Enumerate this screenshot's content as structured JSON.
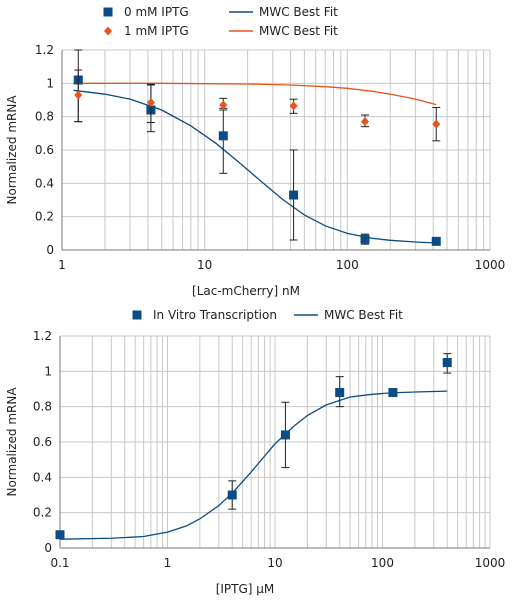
{
  "colors": {
    "blue": "#0b4b86",
    "orange": "#e8541c",
    "grid": "#c8c8c8",
    "axis": "#7a7a7a"
  },
  "chart_data": [
    {
      "type": "scatter",
      "xscale": "log",
      "xlim": [
        1,
        1000
      ],
      "ylim": [
        0,
        1.2
      ],
      "yticks": [
        "0",
        "0.2",
        "0.4",
        "0.6",
        "0.8",
        "1",
        "1.2"
      ],
      "xticks": [
        "1",
        "10",
        "100",
        "1000"
      ],
      "xlabel": "[Lac-mCherry] nM",
      "ylabel": "Normalized mRNA",
      "legend_position": "top",
      "legend": [
        {
          "name": "0 mM IPTG",
          "marker": "square",
          "color": "#0b4b86"
        },
        {
          "name": "MWC Best Fit",
          "marker": "line",
          "color": "#0b4b86"
        },
        {
          "name": "1 mM IPTG",
          "marker": "diamond",
          "color": "#e8541c"
        },
        {
          "name": "MWC Best Fit",
          "marker": "line",
          "color": "#e8541c"
        }
      ],
      "series": [
        {
          "name": "0 mM IPTG",
          "marker": "square",
          "color": "#0b4b86",
          "points": [
            {
              "x": 1.3,
              "y": 1.02,
              "err_lo": 0.25,
              "err_hi": 0.18
            },
            {
              "x": 4.2,
              "y": 0.84,
              "err_lo": 0.13,
              "err_hi": 0.15
            },
            {
              "x": 13.5,
              "y": 0.685,
              "err_lo": 0.225,
              "err_hi": 0.155
            },
            {
              "x": 42,
              "y": 0.33,
              "err_lo": 0.27,
              "err_hi": 0.27
            },
            {
              "x": 133,
              "y": 0.065,
              "err_lo": 0.03,
              "err_hi": 0.03
            },
            {
              "x": 420,
              "y": 0.052,
              "err_lo": 0.01,
              "err_hi": 0.01
            }
          ]
        },
        {
          "name": "1 mM IPTG",
          "marker": "diamond",
          "color": "#e8541c",
          "points": [
            {
              "x": 1.3,
              "y": 0.93,
              "err_lo": 0.16,
              "err_hi": 0.15
            },
            {
              "x": 4.2,
              "y": 0.885,
              "err_lo": 0.12,
              "err_hi": 0.11
            },
            {
              "x": 13.5,
              "y": 0.87,
              "err_lo": 0.02,
              "err_hi": 0.04
            },
            {
              "x": 42,
              "y": 0.865,
              "err_lo": 0.045,
              "err_hi": 0.04
            },
            {
              "x": 133,
              "y": 0.77,
              "err_lo": 0.03,
              "err_hi": 0.04
            },
            {
              "x": 420,
              "y": 0.755,
              "err_lo": 0.1,
              "err_hi": 0.1
            }
          ]
        }
      ],
      "fits": [
        {
          "name": "MWC Best Fit",
          "color": "#0b4b86",
          "x": [
            1.2,
            2,
            3,
            5,
            8,
            12,
            18,
            25,
            35,
            50,
            70,
            100,
            150,
            200,
            300,
            420
          ],
          "y": [
            0.958,
            0.935,
            0.905,
            0.84,
            0.745,
            0.64,
            0.515,
            0.41,
            0.305,
            0.21,
            0.145,
            0.1,
            0.07,
            0.058,
            0.048,
            0.042
          ]
        },
        {
          "name": "MWC Best Fit",
          "color": "#e8541c",
          "x": [
            1.2,
            5,
            10,
            20,
            40,
            70,
            100,
            150,
            200,
            300,
            420
          ],
          "y": [
            1.0,
            1.0,
            0.998,
            0.996,
            0.99,
            0.98,
            0.97,
            0.952,
            0.935,
            0.905,
            0.872
          ]
        }
      ]
    },
    {
      "type": "scatter",
      "xscale": "log",
      "xlim": [
        0.1,
        1000
      ],
      "ylim": [
        0,
        1.2
      ],
      "yticks": [
        "0",
        "0.2",
        "0.4",
        "0.6",
        "0.8",
        "1",
        "1.2"
      ],
      "xticks": [
        "0.1",
        "1",
        "10",
        "100",
        "1000"
      ],
      "xlabel": "[IPTG] μM",
      "ylabel": "Normalized mRNA",
      "legend_position": "top",
      "legend": [
        {
          "name": "In Vitro Transcription",
          "marker": "square",
          "color": "#0b4b86"
        },
        {
          "name": "MWC Best Fit",
          "marker": "line",
          "color": "#0b4b86"
        }
      ],
      "series": [
        {
          "name": "In Vitro Transcription",
          "marker": "square",
          "color": "#0b4b86",
          "points": [
            {
              "x": 0.1,
              "y": 0.075,
              "err_lo": 0,
              "err_hi": 0
            },
            {
              "x": 4,
              "y": 0.3,
              "err_lo": 0.08,
              "err_hi": 0.08
            },
            {
              "x": 12.5,
              "y": 0.64,
              "err_lo": 0.185,
              "err_hi": 0.185
            },
            {
              "x": 40,
              "y": 0.88,
              "err_lo": 0.08,
              "err_hi": 0.09
            },
            {
              "x": 125,
              "y": 0.88,
              "err_lo": 0,
              "err_hi": 0
            },
            {
              "x": 400,
              "y": 1.05,
              "err_lo": 0.06,
              "err_hi": 0.05
            }
          ]
        }
      ],
      "fits": [
        {
          "name": "MWC Best Fit",
          "color": "#0b4b86",
          "x": [
            0.1,
            0.3,
            0.6,
            1,
            1.5,
            2,
            3,
            4,
            6,
            8,
            10,
            15,
            20,
            30,
            50,
            80,
            120,
            200,
            400
          ],
          "y": [
            0.05,
            0.055,
            0.065,
            0.09,
            0.125,
            0.165,
            0.24,
            0.31,
            0.43,
            0.52,
            0.59,
            0.69,
            0.75,
            0.81,
            0.855,
            0.87,
            0.878,
            0.883,
            0.888
          ]
        }
      ]
    }
  ]
}
